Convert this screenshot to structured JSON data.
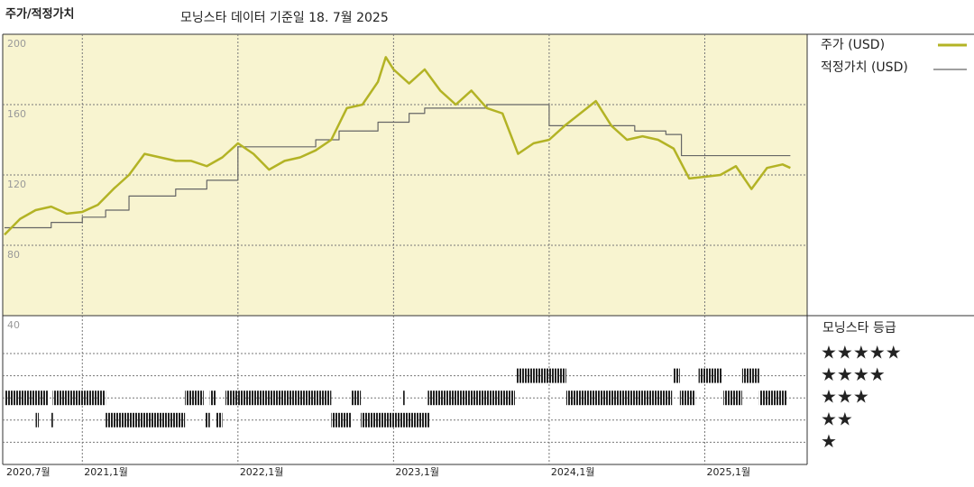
{
  "header": {
    "title": "주가/적정가치",
    "subtitle": "모닝스타 데이터 기준일 18. 7월 2025"
  },
  "chart_data": {
    "type": "line",
    "xlim": [
      2020.5,
      2025.6
    ],
    "xticks": [
      {
        "value": 2020.5,
        "label": "2020,7월"
      },
      {
        "value": 2021.0,
        "label": "2021,1월"
      },
      {
        "value": 2022.0,
        "label": "2022,1월"
      },
      {
        "value": 2023.0,
        "label": "2023,1월"
      },
      {
        "value": 2024.0,
        "label": "2024,1월"
      },
      {
        "value": 2025.0,
        "label": "2025,1월"
      }
    ],
    "ylim": [
      40,
      200
    ],
    "yticks": [
      200,
      160,
      120,
      80,
      40
    ],
    "grid": true,
    "series": [
      {
        "name": "주가 (USD)",
        "color": "#b3b325",
        "drawstyle": "line",
        "x": [
          2020.5,
          2020.6,
          2020.7,
          2020.8,
          2020.9,
          2021.0,
          2021.1,
          2021.2,
          2021.3,
          2021.4,
          2021.5,
          2021.6,
          2021.7,
          2021.8,
          2021.9,
          2022.0,
          2022.1,
          2022.2,
          2022.3,
          2022.4,
          2022.5,
          2022.6,
          2022.7,
          2022.8,
          2022.9,
          2022.95,
          2023.0,
          2023.1,
          2023.2,
          2023.3,
          2023.4,
          2023.5,
          2023.6,
          2023.7,
          2023.8,
          2023.9,
          2024.0,
          2024.1,
          2024.2,
          2024.3,
          2024.4,
          2024.5,
          2024.6,
          2024.7,
          2024.8,
          2024.9,
          2025.0,
          2025.1,
          2025.2,
          2025.3,
          2025.4,
          2025.5,
          2025.55
        ],
        "values": [
          86,
          95,
          100,
          102,
          98,
          99,
          103,
          112,
          120,
          132,
          130,
          128,
          128,
          125,
          130,
          138,
          132,
          123,
          128,
          130,
          134,
          140,
          158,
          160,
          173,
          187,
          180,
          172,
          180,
          168,
          160,
          168,
          158,
          155,
          132,
          138,
          140,
          148,
          155,
          162,
          148,
          140,
          142,
          140,
          135,
          118,
          119,
          120,
          125,
          112,
          124,
          126,
          124
        ]
      },
      {
        "name": "적정가치 (USD)",
        "color": "#666666",
        "drawstyle": "steps-post",
        "x": [
          2020.5,
          2020.8,
          2021.0,
          2021.15,
          2021.3,
          2021.6,
          2021.8,
          2022.0,
          2022.5,
          2022.65,
          2022.9,
          2023.1,
          2023.2,
          2023.6,
          2024.0,
          2024.55,
          2024.75,
          2024.85,
          2025.55
        ],
        "values": [
          90,
          93,
          96,
          100,
          108,
          112,
          117,
          136,
          140,
          145,
          150,
          155,
          158,
          160,
          148,
          145,
          143,
          131,
          131
        ]
      }
    ],
    "rating_title": "모닝스타 등급",
    "rating_labels": [
      {
        "stars": 5,
        "label": "★★★★★"
      },
      {
        "stars": 4,
        "label": "★★★★"
      },
      {
        "stars": 3,
        "label": "★★★"
      },
      {
        "stars": 2,
        "label": "★★"
      },
      {
        "stars": 1,
        "label": "★"
      }
    ],
    "rating_periods": [
      {
        "stars": 4,
        "start": 2023.79,
        "end": 2024.11
      },
      {
        "stars": 4,
        "start": 2024.8,
        "end": 2024.84
      },
      {
        "stars": 4,
        "start": 2024.96,
        "end": 2025.11
      },
      {
        "stars": 4,
        "start": 2025.24,
        "end": 2025.35
      },
      {
        "stars": 3,
        "start": 2020.5,
        "end": 2020.78
      },
      {
        "stars": 3,
        "start": 2020.81,
        "end": 2021.15
      },
      {
        "stars": 3,
        "start": 2021.66,
        "end": 2021.78
      },
      {
        "stars": 3,
        "start": 2021.82,
        "end": 2021.86
      },
      {
        "stars": 3,
        "start": 2021.92,
        "end": 2022.6
      },
      {
        "stars": 3,
        "start": 2022.73,
        "end": 2022.79
      },
      {
        "stars": 3,
        "start": 2023.06,
        "end": 2023.07
      },
      {
        "stars": 3,
        "start": 2023.22,
        "end": 2023.78
      },
      {
        "stars": 3,
        "start": 2024.11,
        "end": 2024.79
      },
      {
        "stars": 3,
        "start": 2024.84,
        "end": 2024.94
      },
      {
        "stars": 3,
        "start": 2025.12,
        "end": 2025.24
      },
      {
        "stars": 3,
        "start": 2025.35,
        "end": 2025.53
      },
      {
        "stars": 2,
        "start": 2020.7,
        "end": 2020.72
      },
      {
        "stars": 2,
        "start": 2020.8,
        "end": 2020.81
      },
      {
        "stars": 2,
        "start": 2021.15,
        "end": 2021.66
      },
      {
        "stars": 2,
        "start": 2021.79,
        "end": 2021.82
      },
      {
        "stars": 2,
        "start": 2021.86,
        "end": 2021.9
      },
      {
        "stars": 2,
        "start": 2022.6,
        "end": 2022.73
      },
      {
        "stars": 2,
        "start": 2022.79,
        "end": 2023.23
      }
    ]
  }
}
